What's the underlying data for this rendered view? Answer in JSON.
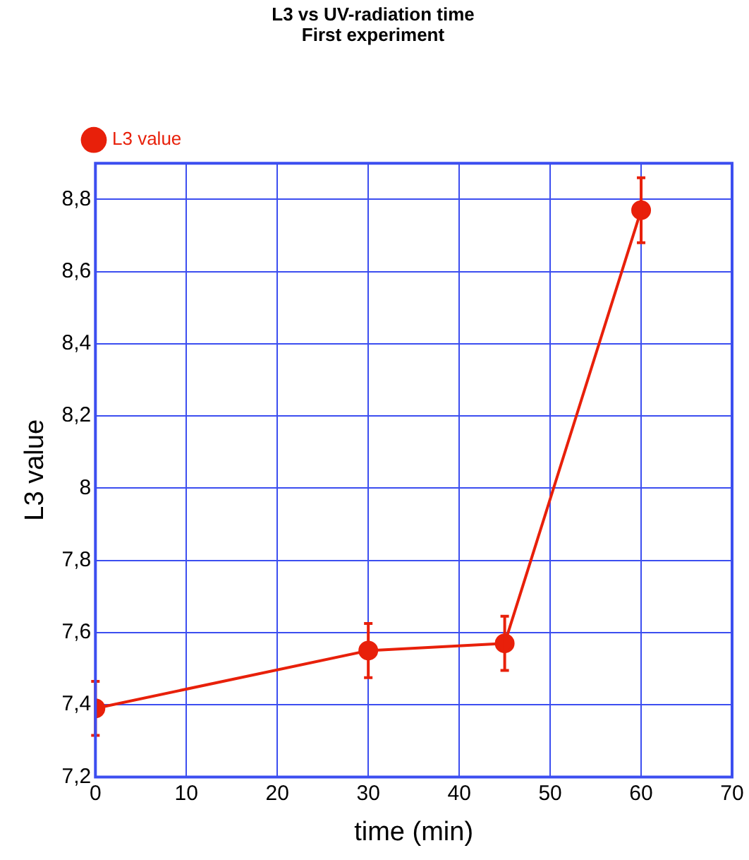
{
  "chart_data": {
    "type": "line",
    "title": [
      "L3 vs UV-radiation time",
      "First experiment"
    ],
    "xlabel": "time (min)",
    "ylabel": "L3 value",
    "x": [
      0,
      30,
      45,
      60
    ],
    "series": [
      {
        "name": "L3 value",
        "color": "#e8200a",
        "values": [
          7.39,
          7.55,
          7.57,
          8.77
        ],
        "errors": [
          0.075,
          0.075,
          0.075,
          0.09
        ]
      }
    ],
    "xlim": [
      0,
      70
    ],
    "xticks": [
      0,
      10,
      20,
      30,
      40,
      50,
      60,
      70
    ],
    "ylim": [
      7.2,
      8.9
    ],
    "yticks": [
      {
        "value": 7.2,
        "label": "7,2"
      },
      {
        "value": 7.4,
        "label": "7,4"
      },
      {
        "value": 7.6,
        "label": "7,6"
      },
      {
        "value": 7.8,
        "label": "7,8"
      },
      8,
      {
        "value": 8.2,
        "label": "8,2"
      },
      {
        "value": 8.4,
        "label": "8,4"
      },
      {
        "value": 8.6,
        "label": "8,6"
      },
      {
        "value": 8.8,
        "label": "8,8"
      }
    ],
    "grid": true,
    "legend": "top left",
    "marker": "circle",
    "line_style": "solid"
  }
}
